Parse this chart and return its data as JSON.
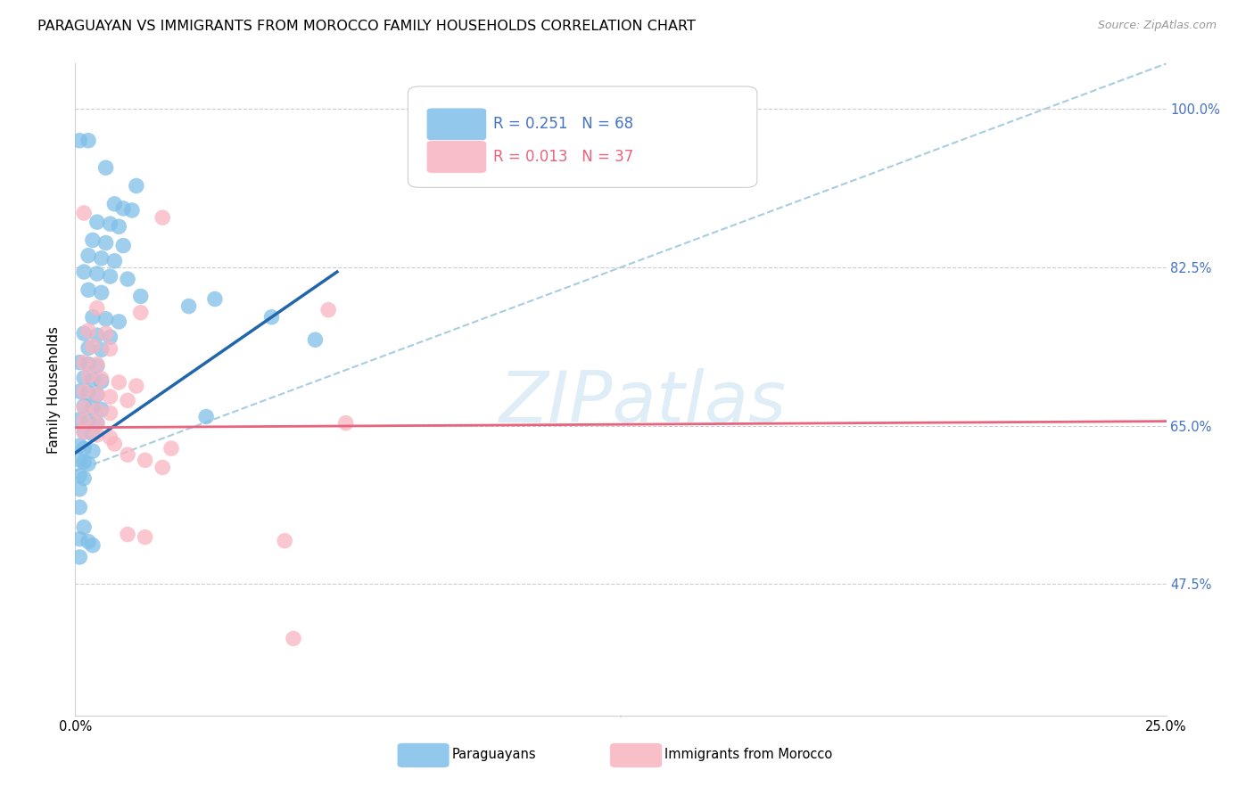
{
  "title": "PARAGUAYAN VS IMMIGRANTS FROM MOROCCO FAMILY HOUSEHOLDS CORRELATION CHART",
  "source": "Source: ZipAtlas.com",
  "ylabel": "Family Households",
  "ytick_labels": [
    "100.0%",
    "82.5%",
    "65.0%",
    "47.5%"
  ],
  "ytick_values": [
    1.0,
    0.825,
    0.65,
    0.475
  ],
  "watermark": "ZIPatlas",
  "blue_scatter": [
    [
      0.1,
      0.965
    ],
    [
      0.3,
      0.965
    ],
    [
      0.7,
      0.935
    ],
    [
      1.4,
      0.915
    ],
    [
      0.9,
      0.895
    ],
    [
      1.1,
      0.89
    ],
    [
      1.3,
      0.888
    ],
    [
      0.5,
      0.875
    ],
    [
      0.8,
      0.873
    ],
    [
      1.0,
      0.87
    ],
    [
      0.4,
      0.855
    ],
    [
      0.7,
      0.852
    ],
    [
      1.1,
      0.849
    ],
    [
      0.3,
      0.838
    ],
    [
      0.6,
      0.835
    ],
    [
      0.9,
      0.832
    ],
    [
      0.2,
      0.82
    ],
    [
      0.5,
      0.818
    ],
    [
      0.8,
      0.815
    ],
    [
      1.2,
      0.812
    ],
    [
      0.3,
      0.8
    ],
    [
      0.6,
      0.797
    ],
    [
      1.5,
      0.793
    ],
    [
      2.6,
      0.782
    ],
    [
      0.4,
      0.77
    ],
    [
      0.7,
      0.768
    ],
    [
      1.0,
      0.765
    ],
    [
      0.2,
      0.752
    ],
    [
      0.5,
      0.75
    ],
    [
      0.8,
      0.748
    ],
    [
      0.3,
      0.736
    ],
    [
      0.6,
      0.734
    ],
    [
      0.1,
      0.72
    ],
    [
      0.3,
      0.718
    ],
    [
      0.5,
      0.716
    ],
    [
      0.2,
      0.703
    ],
    [
      0.4,
      0.701
    ],
    [
      0.6,
      0.699
    ],
    [
      0.1,
      0.688
    ],
    [
      0.3,
      0.686
    ],
    [
      0.5,
      0.684
    ],
    [
      0.2,
      0.672
    ],
    [
      0.4,
      0.67
    ],
    [
      0.6,
      0.668
    ],
    [
      0.1,
      0.657
    ],
    [
      0.3,
      0.655
    ],
    [
      0.5,
      0.653
    ],
    [
      0.2,
      0.643
    ],
    [
      0.4,
      0.641
    ],
    [
      0.1,
      0.628
    ],
    [
      0.2,
      0.625
    ],
    [
      0.4,
      0.622
    ],
    [
      0.1,
      0.612
    ],
    [
      0.2,
      0.61
    ],
    [
      0.3,
      0.608
    ],
    [
      0.1,
      0.595
    ],
    [
      0.2,
      0.592
    ],
    [
      0.1,
      0.58
    ],
    [
      0.1,
      0.56
    ],
    [
      0.2,
      0.538
    ],
    [
      0.1,
      0.525
    ],
    [
      0.3,
      0.522
    ],
    [
      0.4,
      0.518
    ],
    [
      0.1,
      0.505
    ],
    [
      3.2,
      0.79
    ],
    [
      4.5,
      0.77
    ],
    [
      5.5,
      0.745
    ],
    [
      3.0,
      0.66
    ]
  ],
  "pink_scatter": [
    [
      0.2,
      0.885
    ],
    [
      2.0,
      0.88
    ],
    [
      0.5,
      0.78
    ],
    [
      1.5,
      0.775
    ],
    [
      0.3,
      0.755
    ],
    [
      0.7,
      0.752
    ],
    [
      0.4,
      0.738
    ],
    [
      0.8,
      0.735
    ],
    [
      0.2,
      0.72
    ],
    [
      0.5,
      0.718
    ],
    [
      0.3,
      0.705
    ],
    [
      0.6,
      0.702
    ],
    [
      1.0,
      0.698
    ],
    [
      1.4,
      0.694
    ],
    [
      0.2,
      0.688
    ],
    [
      0.5,
      0.685
    ],
    [
      0.8,
      0.682
    ],
    [
      1.2,
      0.678
    ],
    [
      0.2,
      0.67
    ],
    [
      0.5,
      0.667
    ],
    [
      0.8,
      0.664
    ],
    [
      0.2,
      0.655
    ],
    [
      0.5,
      0.652
    ],
    [
      0.2,
      0.643
    ],
    [
      0.5,
      0.64
    ],
    [
      0.8,
      0.637
    ],
    [
      0.9,
      0.63
    ],
    [
      2.2,
      0.625
    ],
    [
      1.2,
      0.618
    ],
    [
      1.6,
      0.612
    ],
    [
      2.0,
      0.604
    ],
    [
      1.2,
      0.53
    ],
    [
      1.6,
      0.527
    ],
    [
      4.8,
      0.523
    ],
    [
      5.8,
      0.778
    ],
    [
      6.2,
      0.653
    ],
    [
      5.0,
      0.415
    ]
  ],
  "blue_line_x": [
    0.0,
    6.0
  ],
  "blue_line_y": [
    0.62,
    0.82
  ],
  "pink_line_x": [
    0.0,
    25.0
  ],
  "pink_line_y": [
    0.648,
    0.655
  ],
  "diag_line_x": [
    0.0,
    25.0
  ],
  "diag_line_y": [
    0.6,
    1.05
  ],
  "xmin": 0.0,
  "xmax": 25.0,
  "ymin": 0.33,
  "ymax": 1.05,
  "blue_color": "#7fbfe8",
  "pink_color": "#f9b4c0",
  "blue_line_color": "#2166ac",
  "pink_line_color": "#e8637d",
  "diag_line_color": "#a8cce0",
  "title_fontsize": 11.5,
  "axis_label_fontsize": 11,
  "tick_fontsize": 10.5,
  "legend_fontsize": 12
}
